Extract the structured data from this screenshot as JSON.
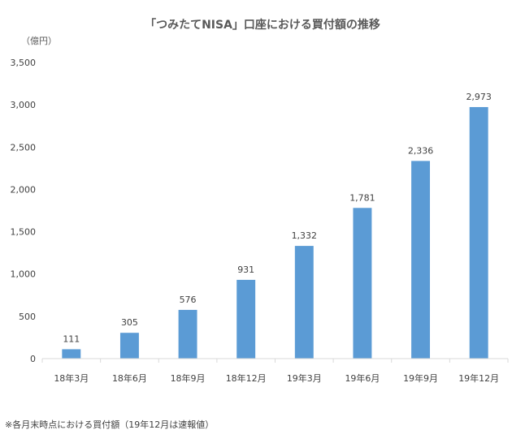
{
  "chart_data": {
    "type": "bar",
    "title": "「つみたてNISA」口座における買付額の推移",
    "unit_label": "（億円）",
    "footnote": "※各月末時点における買付額（19年12月は速報値）",
    "categories": [
      "18年3月",
      "18年6月",
      "18年9月",
      "18年12月",
      "19年3月",
      "19年6月",
      "19年9月",
      "19年12月"
    ],
    "values": [
      111,
      305,
      576,
      931,
      1332,
      1781,
      2336,
      2973
    ],
    "value_labels": [
      "111",
      "305",
      "576",
      "931",
      "1,332",
      "1,781",
      "2,336",
      "2,973"
    ],
    "yticks": [
      0,
      500,
      1000,
      1500,
      2000,
      2500,
      3000,
      3500
    ],
    "ytick_labels": [
      "0",
      "500",
      "1,000",
      "1,500",
      "2,000",
      "2,500",
      "3,000",
      "3,500"
    ],
    "ylim": [
      0,
      3500
    ],
    "grid": false,
    "legend": "none",
    "colors": {
      "bar": "#5B9BD5",
      "axis": "#D9D9D9",
      "text": "#404040"
    }
  }
}
